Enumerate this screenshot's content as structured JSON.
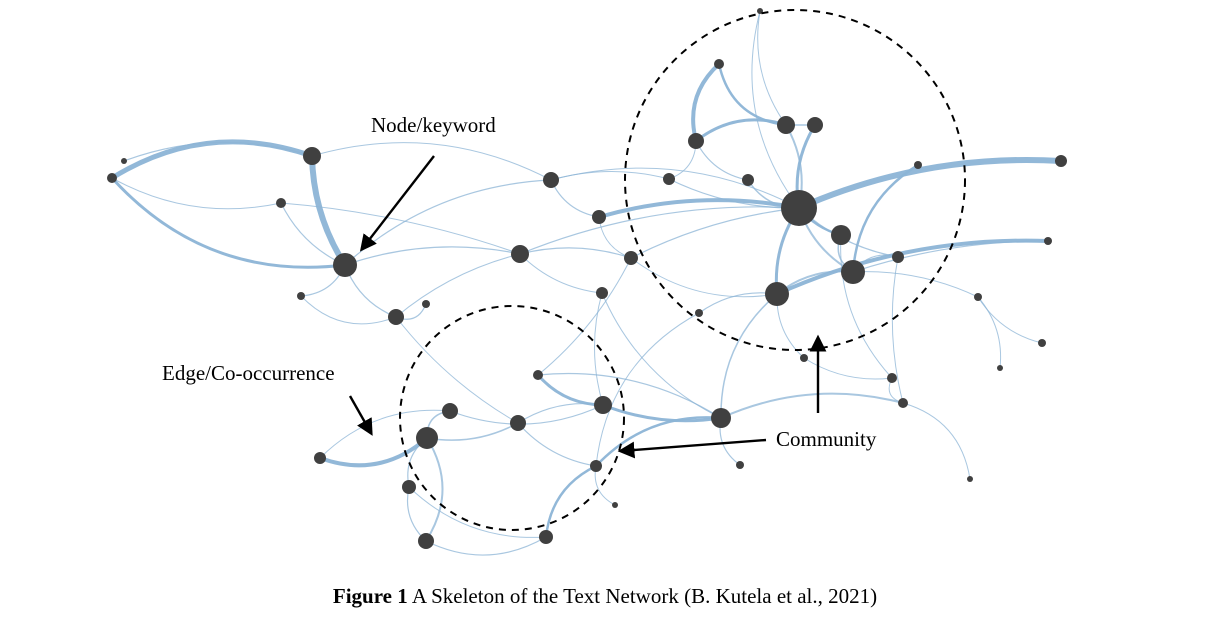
{
  "figure": {
    "labels": {
      "node": "Node/keyword",
      "edge": "Edge/Co-occurrence",
      "community": "Community"
    },
    "caption": {
      "bold": "Figure 1",
      "text": " A Skeleton of the Text Network (B. Kutela et al., 2021)"
    },
    "colors": {
      "edge": "#8cb4d6",
      "node": "#404040",
      "annotation": "#000000"
    }
  }
}
